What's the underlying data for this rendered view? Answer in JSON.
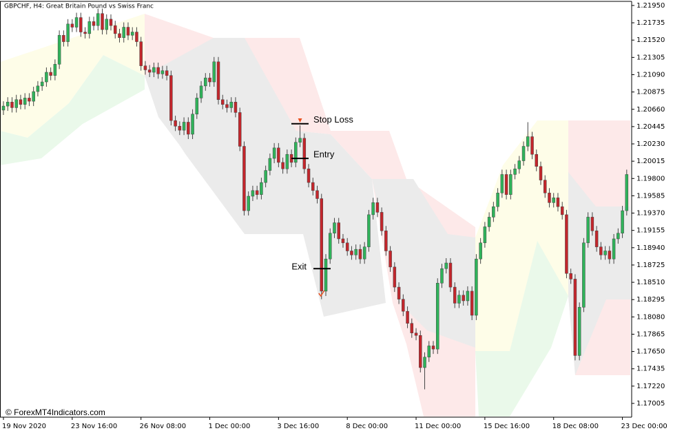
{
  "chart_data": {
    "type": "candlestick",
    "title": "GBPCHF, H4:  Great Britain Pound vs Swiss Franc",
    "watermark": "© ForexMT4Indicators.com",
    "up_color": "#2fb35a",
    "down_color": "#c3262c",
    "wick_color": "#444444",
    "categories": [
      "19 Nov 2020",
      null,
      null,
      null,
      null,
      null,
      null,
      null,
      null,
      null,
      null,
      null,
      null,
      null,
      null,
      null,
      "23 Nov 16:00",
      null,
      null,
      null,
      null,
      null,
      null,
      null,
      null,
      null,
      null,
      null,
      null,
      null,
      null,
      null,
      "26 Nov 08:00",
      null,
      null,
      null,
      null,
      null,
      null,
      null,
      null,
      null,
      null,
      null,
      null,
      null,
      null,
      null,
      "1 Dec 00:00",
      null,
      null,
      null,
      null,
      null,
      null,
      null,
      null,
      null,
      null,
      null,
      null,
      null,
      null,
      null,
      "3 Dec 16:00",
      null,
      null,
      null,
      null,
      null,
      null,
      null,
      null,
      null,
      null,
      null,
      null,
      null,
      null,
      null,
      "8 Dec 00:00",
      null,
      null,
      null,
      null,
      null,
      null,
      null,
      null,
      null,
      null,
      null,
      null,
      null,
      null,
      null,
      "11 Dec 00:00",
      null,
      null,
      null,
      null,
      null,
      null,
      null,
      null,
      null,
      null,
      null,
      null,
      null,
      null,
      null,
      "15 Dec 16:00",
      null,
      null,
      null,
      null,
      null,
      null,
      null,
      null,
      null,
      null,
      null,
      null,
      null,
      null,
      null,
      "18 Dec 08:00",
      null,
      null,
      null,
      null,
      null,
      null,
      null,
      null,
      null,
      null,
      null,
      null,
      null,
      null,
      null,
      "23 Dec 00:00",
      null
    ],
    "open": [
      1.2065,
      1.207,
      1.2075,
      1.2068,
      1.2078,
      1.2072,
      1.208,
      1.2076,
      1.2088,
      1.2095,
      1.21,
      1.2112,
      1.2108,
      1.2122,
      1.2158,
      1.215,
      1.2172,
      1.2168,
      1.218,
      1.2162,
      1.216,
      1.2175,
      1.217,
      1.2185,
      1.2165,
      1.2178,
      1.217,
      1.216,
      1.2155,
      1.2168,
      1.2158,
      1.2162,
      1.215,
      1.212,
      1.2115,
      1.2112,
      1.2118,
      1.211,
      1.2114,
      1.2108,
      1.2052,
      1.2045,
      1.204,
      1.205,
      1.2035,
      1.206,
      1.208,
      1.2095,
      1.2105,
      1.21,
      1.2125,
      1.2078,
      1.2072,
      1.2068,
      1.2075,
      1.2062,
      1.202,
      1.194,
      1.1958,
      1.1965,
      1.196,
      1.1975,
      1.199,
      1.2005,
      1.2018,
      1.2,
      1.1992,
      1.201,
      1.2,
      1.2025,
      1.203,
      1.1992,
      1.1975,
      1.1965,
      1.1955,
      1.184,
      1.188,
      1.1912,
      1.1925,
      1.1905,
      1.19,
      1.189,
      1.1885,
      1.1892,
      1.188,
      1.1895,
      1.1935,
      1.195,
      1.1938,
      1.1915,
      1.189,
      1.187,
      1.1845,
      1.183,
      1.1815,
      1.18,
      1.1788,
      1.1785,
      1.1745,
      1.1758,
      1.1772,
      1.1768,
      1.185,
      1.1868,
      1.1875,
      1.1845,
      1.1825,
      1.1835,
      1.1828,
      1.184,
      1.181,
      1.188,
      1.19,
      1.192,
      1.1932,
      1.1945,
      1.1962,
      1.1985,
      1.196,
      1.1985,
      1.1992,
      1.2002,
      1.202,
      1.2032,
      1.201,
      1.1995,
      1.1978,
      1.1962,
      1.195,
      1.1956,
      1.1945,
      1.1935,
      1.1862,
      1.1855,
      1.176,
      1.182,
      1.19,
      1.1932,
      1.1915,
      1.1895,
      1.1885,
      1.189,
      1.188,
      1.1905,
      1.1912,
      1.194
    ],
    "high": [
      1.2076,
      1.2081,
      1.2081,
      1.2084,
      1.2084,
      1.2086,
      1.2086,
      1.2094,
      1.2101,
      1.2106,
      1.2118,
      1.2118,
      1.2128,
      1.2164,
      1.2164,
      1.2178,
      1.2178,
      1.2186,
      1.2186,
      1.2168,
      1.2181,
      1.2181,
      1.2191,
      1.2191,
      1.2184,
      1.2184,
      1.2176,
      1.2166,
      1.2174,
      1.2174,
      1.2168,
      1.2168,
      1.2156,
      1.2126,
      1.2121,
      1.2124,
      1.2124,
      1.212,
      1.212,
      1.2114,
      1.2058,
      1.2051,
      1.2056,
      1.2056,
      1.2066,
      1.2086,
      1.2101,
      1.2111,
      1.2111,
      1.2131,
      1.2131,
      1.2084,
      1.2078,
      1.2081,
      1.2081,
      1.2068,
      1.2026,
      1.1964,
      1.1971,
      1.1971,
      1.1981,
      1.1996,
      1.2011,
      1.2024,
      1.2024,
      1.2006,
      1.2016,
      1.2016,
      1.2031,
      1.2046,
      1.2036,
      1.1998,
      1.1981,
      1.1971,
      1.1961,
      1.1886,
      1.1918,
      1.1931,
      1.1931,
      1.1911,
      1.1906,
      1.1896,
      1.1898,
      1.1898,
      1.1901,
      1.1941,
      1.1956,
      1.1956,
      1.1944,
      1.1921,
      1.1896,
      1.1876,
      1.1851,
      1.1836,
      1.1821,
      1.1806,
      1.1794,
      1.1791,
      1.1764,
      1.1778,
      1.1778,
      1.1856,
      1.1874,
      1.1881,
      1.1881,
      1.1851,
      1.1841,
      1.1841,
      1.1846,
      1.1846,
      1.1886,
      1.1906,
      1.1926,
      1.1938,
      1.1951,
      1.1968,
      1.1991,
      1.1991,
      1.1991,
      1.1998,
      1.2008,
      1.2026,
      1.205,
      1.2038,
      1.2016,
      1.2001,
      1.1984,
      1.1968,
      1.1962,
      1.1962,
      1.1951,
      1.1941,
      1.1868,
      1.1861,
      1.1826,
      1.1906,
      1.1938,
      1.1938,
      1.1921,
      1.1901,
      1.1896,
      1.1896,
      1.1911,
      1.1918,
      1.1946,
      1.1991
    ],
    "low": [
      1.2059,
      1.2064,
      1.2062,
      1.2062,
      1.2066,
      1.2066,
      1.207,
      1.207,
      1.2082,
      1.2089,
      1.2094,
      1.2102,
      1.2102,
      1.2116,
      1.2144,
      1.2144,
      1.2162,
      1.2162,
      1.2156,
      1.2154,
      1.2154,
      1.2164,
      1.2164,
      1.2159,
      1.2159,
      1.2164,
      1.2154,
      1.2149,
      1.2149,
      1.2152,
      1.2152,
      1.2144,
      1.2114,
      1.2109,
      1.2106,
      1.2106,
      1.2104,
      1.2104,
      1.2102,
      1.2046,
      1.2039,
      1.2034,
      1.2034,
      1.2029,
      1.2029,
      1.2054,
      1.2074,
      1.2089,
      1.2094,
      1.2094,
      1.2072,
      1.2066,
      1.2062,
      1.2062,
      1.2056,
      1.2014,
      1.1934,
      1.1934,
      1.1952,
      1.1954,
      1.1954,
      1.1969,
      1.1984,
      1.1999,
      1.1994,
      1.1986,
      1.1986,
      1.1994,
      1.1994,
      1.2019,
      1.1986,
      1.1969,
      1.1959,
      1.1949,
      1.183,
      1.1834,
      1.1874,
      1.1906,
      1.1899,
      1.1894,
      1.1884,
      1.1879,
      1.1879,
      1.1874,
      1.1874,
      1.1889,
      1.1929,
      1.1932,
      1.1909,
      1.1884,
      1.1864,
      1.1839,
      1.1824,
      1.1809,
      1.1794,
      1.1782,
      1.1779,
      1.1739,
      1.1718,
      1.1752,
      1.1762,
      1.1762,
      1.1844,
      1.1862,
      1.1839,
      1.1819,
      1.1819,
      1.1822,
      1.1822,
      1.1804,
      1.1804,
      1.1874,
      1.1894,
      1.1914,
      1.1926,
      1.1939,
      1.1956,
      1.1954,
      1.1954,
      1.1979,
      1.1986,
      1.1996,
      1.2014,
      1.2004,
      1.1989,
      1.1972,
      1.1956,
      1.1944,
      1.1944,
      1.1939,
      1.1929,
      1.1856,
      1.1849,
      1.1754,
      1.1754,
      1.1814,
      1.1894,
      1.1909,
      1.1889,
      1.1879,
      1.1879,
      1.1874,
      1.1874,
      1.1899,
      1.1906,
      1.1934
    ],
    "close": [
      1.207,
      1.2075,
      1.2068,
      1.2078,
      1.2072,
      1.208,
      1.2076,
      1.2088,
      1.2095,
      1.21,
      1.2112,
      1.2108,
      1.2122,
      1.2158,
      1.215,
      1.2172,
      1.2168,
      1.218,
      1.2162,
      1.216,
      1.2175,
      1.217,
      1.2185,
      1.2165,
      1.2178,
      1.217,
      1.216,
      1.2155,
      1.2168,
      1.2158,
      1.2162,
      1.215,
      1.212,
      1.2115,
      1.2112,
      1.2118,
      1.211,
      1.2114,
      1.2108,
      1.2052,
      1.2045,
      1.204,
      1.205,
      1.2035,
      1.206,
      1.208,
      1.2095,
      1.2105,
      1.21,
      1.2125,
      1.2078,
      1.2072,
      1.2068,
      1.2075,
      1.2062,
      1.202,
      1.194,
      1.1958,
      1.1965,
      1.196,
      1.1975,
      1.199,
      1.2005,
      1.2018,
      1.2,
      1.1992,
      1.201,
      1.2,
      1.2025,
      1.203,
      1.1992,
      1.1975,
      1.1965,
      1.1955,
      1.184,
      1.188,
      1.1912,
      1.1925,
      1.1905,
      1.19,
      1.189,
      1.1885,
      1.1892,
      1.188,
      1.1895,
      1.1935,
      1.195,
      1.1938,
      1.1915,
      1.189,
      1.187,
      1.1845,
      1.183,
      1.1815,
      1.18,
      1.1788,
      1.1785,
      1.1745,
      1.1758,
      1.1772,
      1.1768,
      1.185,
      1.1868,
      1.1875,
      1.1845,
      1.1825,
      1.1835,
      1.1828,
      1.184,
      1.181,
      1.188,
      1.19,
      1.192,
      1.1932,
      1.1945,
      1.1962,
      1.1985,
      1.196,
      1.1985,
      1.1992,
      1.2002,
      1.202,
      1.2032,
      1.201,
      1.1995,
      1.1978,
      1.1962,
      1.195,
      1.1956,
      1.1945,
      1.1935,
      1.1862,
      1.1855,
      1.176,
      1.182,
      1.19,
      1.1932,
      1.1915,
      1.1895,
      1.1885,
      1.189,
      1.188,
      1.1905,
      1.1912,
      1.194,
      1.1985
    ],
    "annotations": [
      {
        "text": "Stop Loss",
        "value": 1.2048
      },
      {
        "text": "Entry",
        "value": 1.2005
      },
      {
        "text": "Exit",
        "value": 1.1868
      }
    ],
    "ylim": [
      1.16834,
      1.22001
    ],
    "yticks": [
      {
        "value": 1.2195,
        "label": "1.21950"
      },
      {
        "value": 1.21735,
        "label": "1.21735"
      },
      {
        "value": 1.2152,
        "label": "1.21520"
      },
      {
        "value": 1.21305,
        "label": "1.21305"
      },
      {
        "value": 1.2109,
        "label": "1.21090"
      },
      {
        "value": 1.20875,
        "label": "1.20875"
      },
      {
        "value": 1.2066,
        "label": "1.20660"
      },
      {
        "value": 1.20445,
        "label": "1.20445"
      },
      {
        "value": 1.2023,
        "label": "1.20230"
      },
      {
        "value": 1.20015,
        "label": "1.20015"
      },
      {
        "value": 1.198,
        "label": "1.19800"
      },
      {
        "value": 1.19585,
        "label": "1.19585"
      },
      {
        "value": 1.1937,
        "label": "1.19370"
      },
      {
        "value": 1.19155,
        "label": "1.19155"
      },
      {
        "value": 1.1894,
        "label": "1.18940"
      },
      {
        "value": 1.18725,
        "label": "1.18725"
      },
      {
        "value": 1.1851,
        "label": "1.18510"
      },
      {
        "value": 1.18295,
        "label": "1.18295"
      },
      {
        "value": 1.1808,
        "label": "1.18080"
      },
      {
        "value": 1.17865,
        "label": "1.17865"
      },
      {
        "value": 1.1765,
        "label": "1.17650"
      },
      {
        "value": 1.17435,
        "label": "1.17435"
      },
      {
        "value": 1.1722,
        "label": "1.17220"
      },
      {
        "value": 1.17005,
        "label": "1.17005"
      }
    ]
  }
}
